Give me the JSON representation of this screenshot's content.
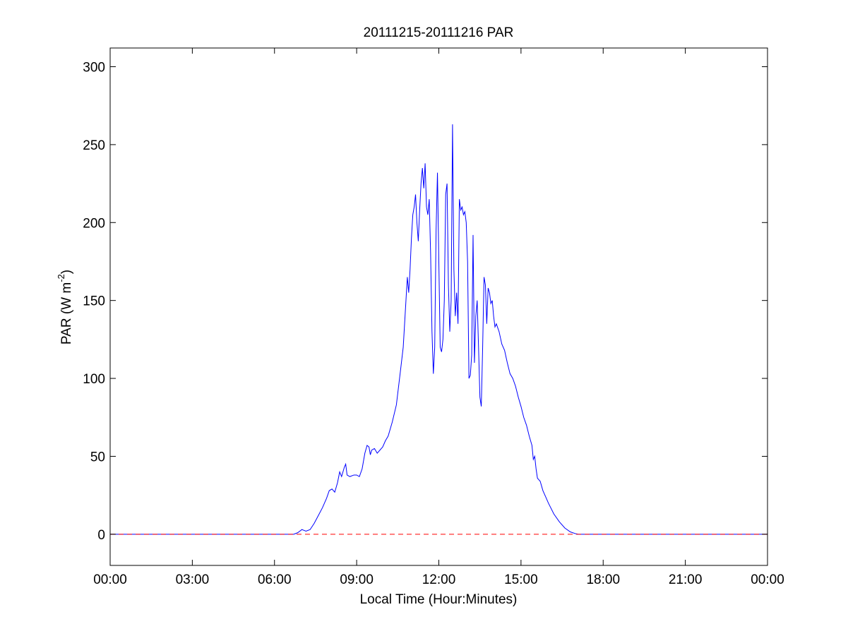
{
  "chart_data": {
    "type": "line",
    "title": "20111215-20111216 PAR",
    "xlabel": "Local Time (Hour:Minutes)",
    "ylabel": {
      "base": "PAR (W m",
      "superscript": "-2",
      "suffix": ")"
    },
    "xlim": [
      0,
      24
    ],
    "ylim": [
      -20,
      312
    ],
    "xticks": [
      {
        "value": 0,
        "label": "00:00"
      },
      {
        "value": 3,
        "label": "03:00"
      },
      {
        "value": 6,
        "label": "06:00"
      },
      {
        "value": 9,
        "label": "09:00"
      },
      {
        "value": 12,
        "label": "12:00"
      },
      {
        "value": 15,
        "label": "15:00"
      },
      {
        "value": 18,
        "label": "18:00"
      },
      {
        "value": 21,
        "label": "21:00"
      },
      {
        "value": 24,
        "label": "00:00"
      }
    ],
    "yticks": [
      {
        "value": 0,
        "label": "0"
      },
      {
        "value": 50,
        "label": "50"
      },
      {
        "value": 100,
        "label": "100"
      },
      {
        "value": 150,
        "label": "150"
      },
      {
        "value": 200,
        "label": "200"
      },
      {
        "value": 250,
        "label": "250"
      },
      {
        "value": 300,
        "label": "300"
      }
    ],
    "grid": false,
    "series": [
      {
        "color": "#0000ff",
        "style": "solid",
        "points": [
          [
            0.0,
            0
          ],
          [
            6.7,
            0
          ],
          [
            6.85,
            1
          ],
          [
            7.0,
            3
          ],
          [
            7.15,
            2
          ],
          [
            7.3,
            3
          ],
          [
            7.45,
            7
          ],
          [
            7.6,
            12
          ],
          [
            7.75,
            17
          ],
          [
            7.9,
            23
          ],
          [
            8.0,
            28
          ],
          [
            8.1,
            29
          ],
          [
            8.2,
            27
          ],
          [
            8.3,
            33
          ],
          [
            8.38,
            40
          ],
          [
            8.45,
            37
          ],
          [
            8.55,
            43
          ],
          [
            8.6,
            45
          ],
          [
            8.65,
            38
          ],
          [
            8.75,
            37
          ],
          [
            8.9,
            38
          ],
          [
            9.0,
            38
          ],
          [
            9.1,
            37
          ],
          [
            9.2,
            42
          ],
          [
            9.3,
            52
          ],
          [
            9.38,
            57
          ],
          [
            9.45,
            56
          ],
          [
            9.5,
            51
          ],
          [
            9.55,
            54
          ],
          [
            9.65,
            55
          ],
          [
            9.75,
            52
          ],
          [
            9.85,
            54
          ],
          [
            9.95,
            56
          ],
          [
            10.05,
            60
          ],
          [
            10.15,
            63
          ],
          [
            10.3,
            72
          ],
          [
            10.45,
            83
          ],
          [
            10.6,
            105
          ],
          [
            10.7,
            120
          ],
          [
            10.8,
            150
          ],
          [
            10.85,
            165
          ],
          [
            10.9,
            155
          ],
          [
            10.95,
            170
          ],
          [
            11.0,
            190
          ],
          [
            11.05,
            205
          ],
          [
            11.1,
            210
          ],
          [
            11.15,
            218
          ],
          [
            11.2,
            200
          ],
          [
            11.25,
            188
          ],
          [
            11.3,
            208
          ],
          [
            11.35,
            225
          ],
          [
            11.4,
            235
          ],
          [
            11.45,
            222
          ],
          [
            11.5,
            238
          ],
          [
            11.55,
            210
          ],
          [
            11.6,
            205
          ],
          [
            11.65,
            215
          ],
          [
            11.7,
            180
          ],
          [
            11.75,
            130
          ],
          [
            11.8,
            103
          ],
          [
            11.85,
            120
          ],
          [
            11.9,
            195
          ],
          [
            11.95,
            232
          ],
          [
            12.0,
            175
          ],
          [
            12.05,
            120
          ],
          [
            12.1,
            117
          ],
          [
            12.15,
            125
          ],
          [
            12.2,
            150
          ],
          [
            12.25,
            218
          ],
          [
            12.3,
            225
          ],
          [
            12.35,
            160
          ],
          [
            12.4,
            130
          ],
          [
            12.45,
            150
          ],
          [
            12.5,
            263
          ],
          [
            12.55,
            170
          ],
          [
            12.6,
            140
          ],
          [
            12.65,
            155
          ],
          [
            12.7,
            135
          ],
          [
            12.75,
            215
          ],
          [
            12.8,
            208
          ],
          [
            12.85,
            210
          ],
          [
            12.9,
            205
          ],
          [
            12.95,
            207
          ],
          [
            13.0,
            200
          ],
          [
            13.05,
            175
          ],
          [
            13.1,
            100
          ],
          [
            13.15,
            102
          ],
          [
            13.2,
            115
          ],
          [
            13.25,
            192
          ],
          [
            13.3,
            110
          ],
          [
            13.35,
            140
          ],
          [
            13.4,
            150
          ],
          [
            13.45,
            120
          ],
          [
            13.5,
            88
          ],
          [
            13.55,
            82
          ],
          [
            13.6,
            120
          ],
          [
            13.65,
            165
          ],
          [
            13.7,
            160
          ],
          [
            13.75,
            135
          ],
          [
            13.8,
            158
          ],
          [
            13.85,
            155
          ],
          [
            13.9,
            148
          ],
          [
            13.95,
            150
          ],
          [
            14.0,
            140
          ],
          [
            14.05,
            133
          ],
          [
            14.1,
            135
          ],
          [
            14.2,
            130
          ],
          [
            14.3,
            122
          ],
          [
            14.4,
            118
          ],
          [
            14.5,
            110
          ],
          [
            14.6,
            103
          ],
          [
            14.7,
            100
          ],
          [
            14.8,
            95
          ],
          [
            14.9,
            88
          ],
          [
            15.0,
            82
          ],
          [
            15.1,
            75
          ],
          [
            15.2,
            70
          ],
          [
            15.3,
            63
          ],
          [
            15.4,
            57
          ],
          [
            15.45,
            48
          ],
          [
            15.5,
            50
          ],
          [
            15.55,
            42
          ],
          [
            15.6,
            36
          ],
          [
            15.7,
            34
          ],
          [
            15.8,
            28
          ],
          [
            15.9,
            24
          ],
          [
            16.0,
            20
          ],
          [
            16.2,
            13
          ],
          [
            16.4,
            8
          ],
          [
            16.6,
            4
          ],
          [
            16.8,
            1.5
          ],
          [
            17.0,
            0.3
          ],
          [
            17.1,
            0
          ],
          [
            24.0,
            0
          ]
        ]
      },
      {
        "color": "#ff0000",
        "style": "dashed",
        "points": [
          [
            0,
            0
          ],
          [
            24,
            0
          ]
        ]
      }
    ]
  }
}
